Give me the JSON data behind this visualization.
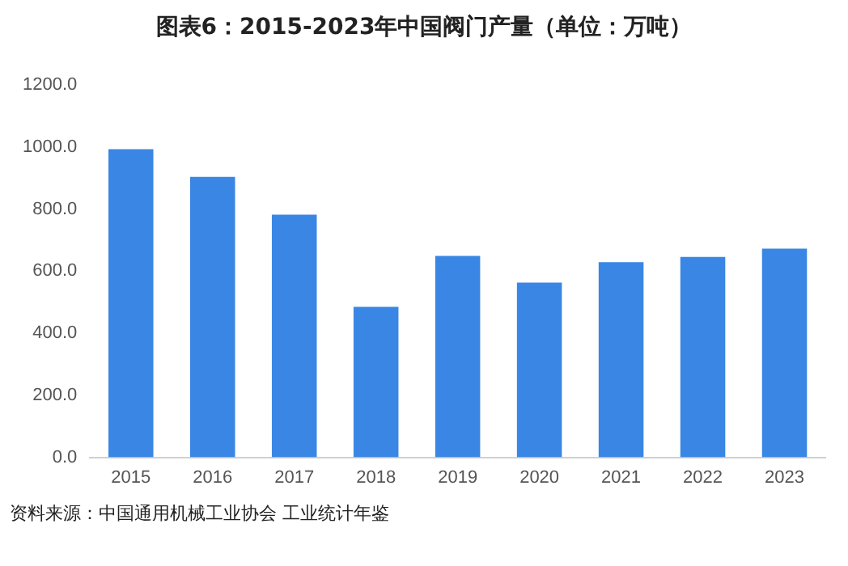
{
  "chart_data": {
    "type": "bar",
    "title": "图表6：2015-2023年中国阀门产量（单位：万吨）",
    "categories": [
      "2015",
      "2016",
      "2017",
      "2018",
      "2019",
      "2020",
      "2021",
      "2022",
      "2023"
    ],
    "values": [
      993,
      904,
      782,
      485,
      649,
      563,
      629,
      646,
      673
    ],
    "color": "#3a86e4",
    "ylim": [
      0,
      1200
    ],
    "yticks": [
      {
        "value": 0,
        "label": "0.0"
      },
      {
        "value": 200,
        "label": "200.0"
      },
      {
        "value": 400,
        "label": "400.0"
      },
      {
        "value": 600,
        "label": "600.0"
      },
      {
        "value": 800,
        "label": "800.0"
      },
      {
        "value": 1000,
        "label": "1000.0"
      },
      {
        "value": 1200,
        "label": "1200.0"
      }
    ],
    "grid": false,
    "legend": false,
    "annotations": [
      "资料来源：中国通用机械工业协会 工业统计年鉴"
    ]
  }
}
